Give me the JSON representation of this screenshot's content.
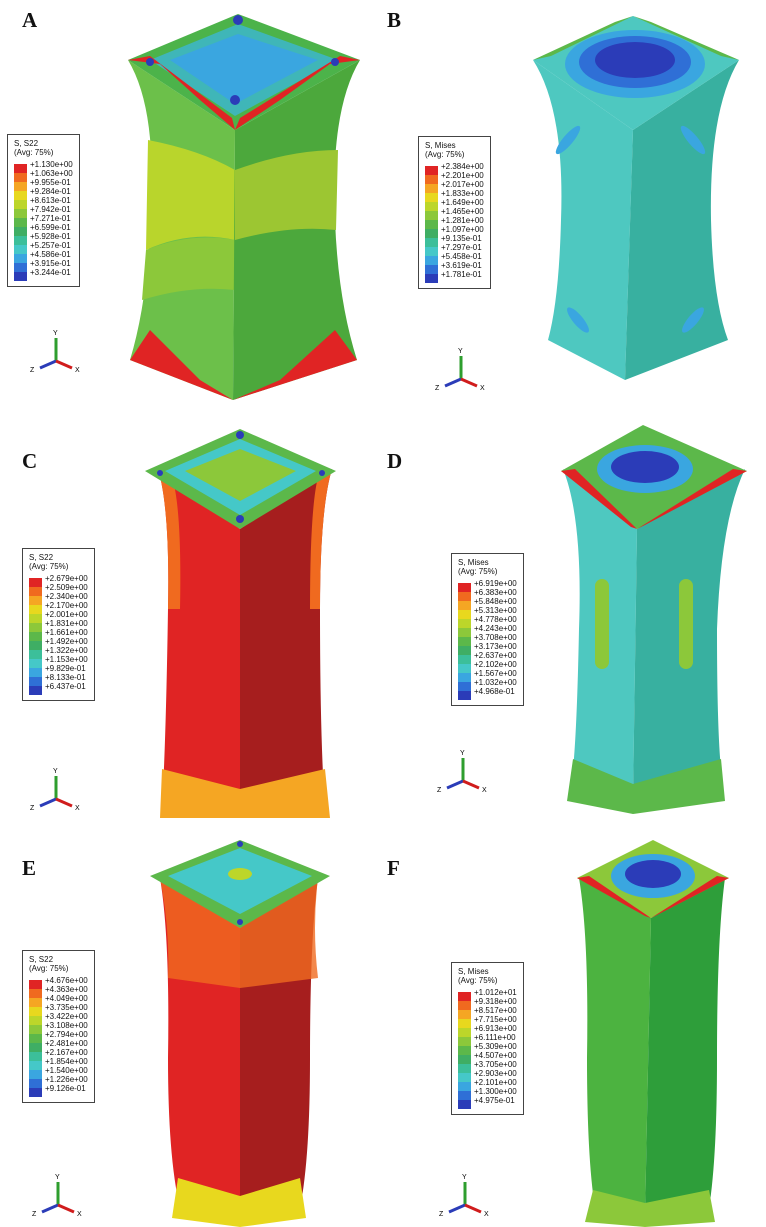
{
  "colors": {
    "contour": [
      "#e02424",
      "#f06a1f",
      "#f5a623",
      "#e8d81e",
      "#bcd62a",
      "#8cc83a",
      "#5cb84a",
      "#3fae64",
      "#3cbf9a",
      "#45c8c8",
      "#3aa6e0",
      "#2f6fd6",
      "#2b3cb8"
    ]
  },
  "panels": [
    {
      "letter": "A",
      "legend_title": "S, S22\n(Avg: 75%)",
      "values": [
        "+1.130e+00",
        "+1.063e+00",
        "+9.955e-01",
        "+9.284e-01",
        "+8.613e-01",
        "+7.942e-01",
        "+7.271e-01",
        "+6.599e-01",
        "+5.928e-01",
        "+5.257e-01",
        "+4.586e-01",
        "+3.915e-01",
        "+3.244e-01"
      ]
    },
    {
      "letter": "B",
      "legend_title": "S, Mises\n(Avg: 75%)",
      "values": [
        "+2.384e+00",
        "+2.201e+00",
        "+2.017e+00",
        "+1.833e+00",
        "+1.649e+00",
        "+1.465e+00",
        "+1.281e+00",
        "+1.097e+00",
        "+9.135e-01",
        "+7.297e-01",
        "+5.458e-01",
        "+3.619e-01",
        "+1.781e-01"
      ]
    },
    {
      "letter": "C",
      "legend_title": "S, S22\n(Avg: 75%)",
      "values": [
        "+2.679e+00",
        "+2.509e+00",
        "+2.340e+00",
        "+2.170e+00",
        "+2.001e+00",
        "+1.831e+00",
        "+1.661e+00",
        "+1.492e+00",
        "+1.322e+00",
        "+1.153e+00",
        "+9.829e-01",
        "+8.133e-01",
        "+6.437e-01"
      ]
    },
    {
      "letter": "D",
      "legend_title": "S, Mises\n(Avg: 75%)",
      "values": [
        "+6.919e+00",
        "+6.383e+00",
        "+5.848e+00",
        "+5.313e+00",
        "+4.778e+00",
        "+4.243e+00",
        "+3.708e+00",
        "+3.173e+00",
        "+2.637e+00",
        "+2.102e+00",
        "+1.567e+00",
        "+1.032e+00",
        "+4.968e-01"
      ]
    },
    {
      "letter": "E",
      "legend_title": "S, S22\n(Avg: 75%)",
      "values": [
        "+4.676e+00",
        "+4.363e+00",
        "+4.049e+00",
        "+3.735e+00",
        "+3.422e+00",
        "+3.108e+00",
        "+2.794e+00",
        "+2.481e+00",
        "+2.167e+00",
        "+1.854e+00",
        "+1.540e+00",
        "+1.226e+00",
        "+9.126e-01"
      ]
    },
    {
      "letter": "F",
      "legend_title": "S, Mises\n(Avg: 75%)",
      "values": [
        "+1.012e+01",
        "+9.318e+00",
        "+8.517e+00",
        "+7.715e+00",
        "+6.913e+00",
        "+6.111e+00",
        "+5.309e+00",
        "+4.507e+00",
        "+3.705e+00",
        "+2.903e+00",
        "+2.101e+00",
        "+1.300e+00",
        "+4.975e-01"
      ]
    }
  ],
  "triad_labels": {
    "y": "Y",
    "z": "Z",
    "x": "X"
  }
}
